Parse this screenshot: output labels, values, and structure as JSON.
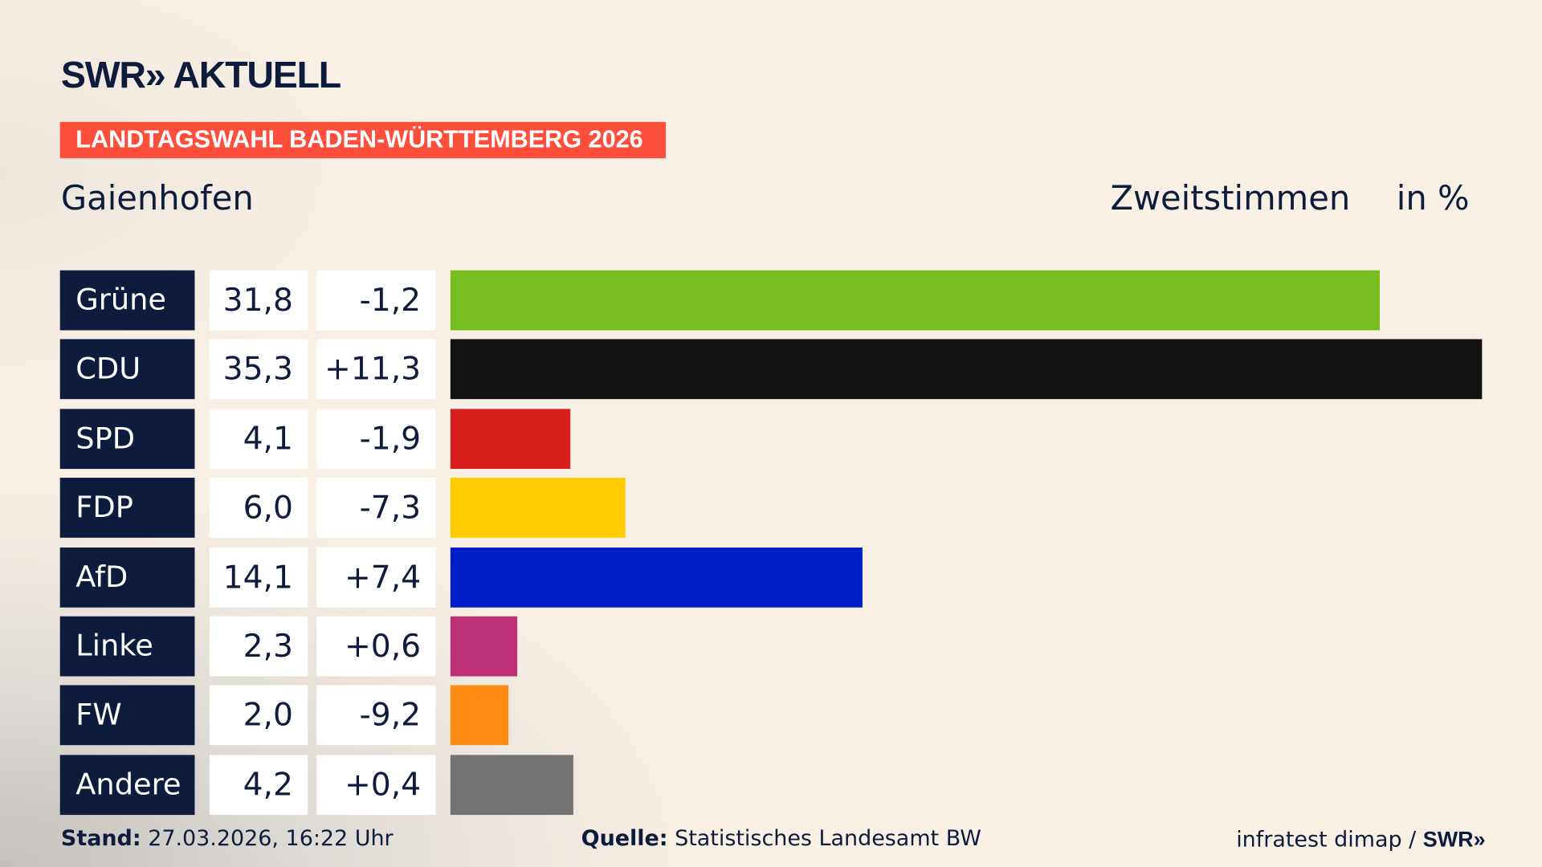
{
  "header": {
    "logo": "SWR» AKTUELL",
    "banner": "LANDTAGSWAHL BADEN-WÜRTTEMBERG 2026",
    "place": "Gaienhofen",
    "measure": "Zweitstimmen",
    "unit": "in %"
  },
  "chart_data": {
    "type": "bar",
    "orientation": "horizontal",
    "xlim": [
      0,
      35.3
    ],
    "grid": false,
    "categories": [
      "Grüne",
      "CDU",
      "SPD",
      "FDP",
      "AfD",
      "Linke",
      "FW",
      "Andere"
    ],
    "values": [
      31.8,
      35.3,
      4.1,
      6.0,
      14.1,
      2.3,
      2.0,
      4.2
    ],
    "value_labels": [
      "31,8",
      "35,3",
      "4,1",
      "6,0",
      "14,1",
      "2,3",
      "2,0",
      "4,2"
    ],
    "diffs": [
      -1.2,
      11.3,
      -1.9,
      -7.3,
      7.4,
      0.6,
      -9.2,
      0.4
    ],
    "diff_labels": [
      "-1,2",
      "+11,3",
      "-1,9",
      "-7,3",
      "+7,4",
      "+0,6",
      "-9,2",
      "+0,4"
    ],
    "colors": [
      "#78be20",
      "#121212",
      "#d71f1d",
      "#ffcc00",
      "#001ec8",
      "#be3075",
      "#ff8b15",
      "#737373"
    ]
  },
  "footer": {
    "stand_label": "Stand:",
    "stand_value": "27.03.2026, 16:22 Uhr",
    "source_label": "Quelle:",
    "source_value": "Statistisches Landesamt BW",
    "credit": "infratest dimap / ",
    "credit_logo": "SWR»"
  }
}
